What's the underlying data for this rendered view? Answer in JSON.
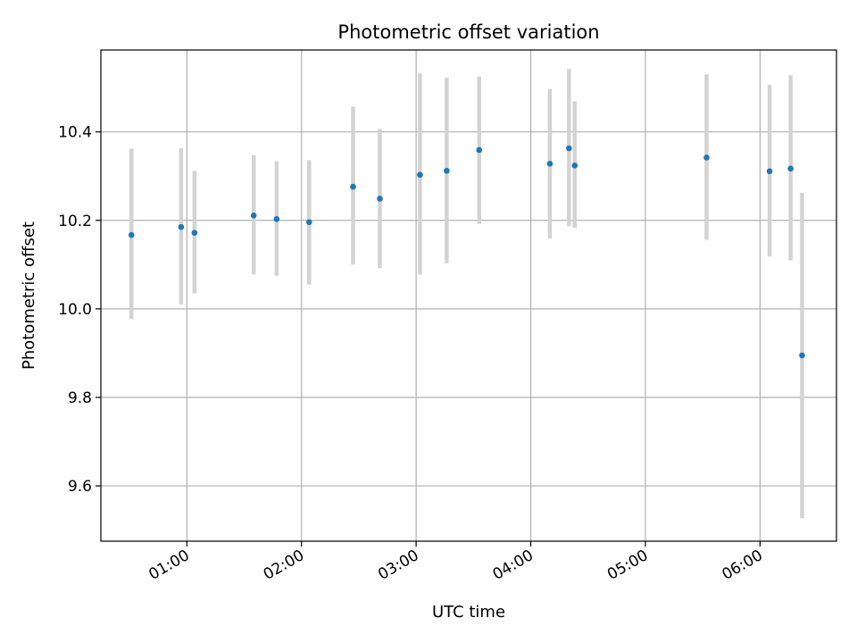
{
  "chart_data": {
    "type": "scatter",
    "title": "Photometric offset variation",
    "xlabel": "UTC time",
    "ylabel": "Photometric offset",
    "x_ticks": [
      "01:00",
      "02:00",
      "03:00",
      "04:00",
      "05:00",
      "06:00"
    ],
    "y_ticks": [
      "9.6",
      "9.8",
      "10.0",
      "10.2",
      "10.4"
    ],
    "ylim": [
      9.475,
      10.585
    ],
    "xlim": [
      "00:15",
      "06:40"
    ],
    "grid": true,
    "colors": {
      "point": "#1f77b4",
      "errorbar": "#d3d3d3",
      "grid": "#b0b0b0"
    },
    "points": [
      {
        "x": "00:31",
        "y": 10.167,
        "low": 9.977,
        "high": 10.362
      },
      {
        "x": "00:57",
        "y": 10.185,
        "low": 10.01,
        "high": 10.363
      },
      {
        "x": "01:04",
        "y": 10.172,
        "low": 10.035,
        "high": 10.312
      },
      {
        "x": "01:35",
        "y": 10.211,
        "low": 10.078,
        "high": 10.347
      },
      {
        "x": "01:47",
        "y": 10.203,
        "low": 10.075,
        "high": 10.333
      },
      {
        "x": "02:04",
        "y": 10.196,
        "low": 10.055,
        "high": 10.336
      },
      {
        "x": "02:27",
        "y": 10.276,
        "low": 10.1,
        "high": 10.457
      },
      {
        "x": "02:41",
        "y": 10.249,
        "low": 10.092,
        "high": 10.407
      },
      {
        "x": "03:02",
        "y": 10.303,
        "low": 10.078,
        "high": 10.532
      },
      {
        "x": "03:16",
        "y": 10.312,
        "low": 10.103,
        "high": 10.523
      },
      {
        "x": "03:33",
        "y": 10.359,
        "low": 10.192,
        "high": 10.525
      },
      {
        "x": "04:10",
        "y": 10.328,
        "low": 10.159,
        "high": 10.497
      },
      {
        "x": "04:20",
        "y": 10.363,
        "low": 10.187,
        "high": 10.542
      },
      {
        "x": "04:23",
        "y": 10.324,
        "low": 10.183,
        "high": 10.469
      },
      {
        "x": "05:32",
        "y": 10.342,
        "low": 10.156,
        "high": 10.53
      },
      {
        "x": "06:05",
        "y": 10.311,
        "low": 10.118,
        "high": 10.506
      },
      {
        "x": "06:16",
        "y": 10.317,
        "low": 10.11,
        "high": 10.528
      },
      {
        "x": "06:22",
        "y": 9.895,
        "low": 9.527,
        "high": 10.262
      }
    ]
  }
}
